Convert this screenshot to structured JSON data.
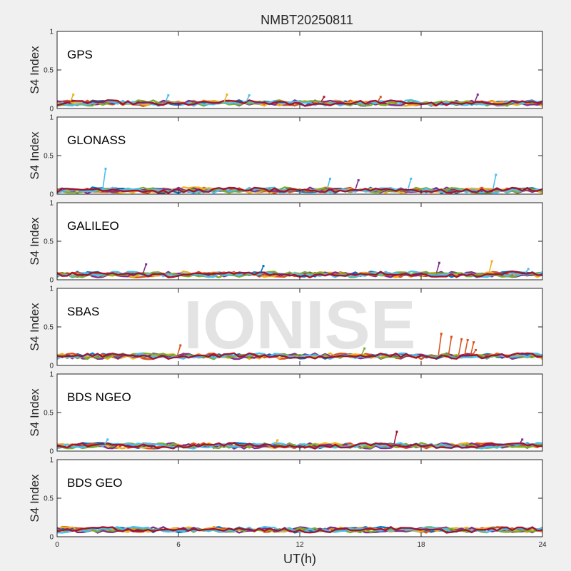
{
  "figure": {
    "title": "NMBT20250811",
    "xlabel": "UT(h)",
    "watermark": "IONISE"
  },
  "palette": [
    "#0072BD",
    "#D95319",
    "#EDB120",
    "#7E2F8E",
    "#77AC30",
    "#4DBEEE",
    "#A2142F"
  ],
  "chart_data": [
    {
      "type": "scatter",
      "label": "GPS",
      "ylabel": "S4 Index",
      "xlim": [
        0,
        24
      ],
      "ylim": [
        0,
        1
      ],
      "xticks": [
        0,
        6,
        12,
        18,
        24
      ],
      "yticks": [
        0,
        0.5,
        1
      ],
      "baseline": 0.07,
      "spikes": [
        {
          "x": 0.8,
          "y": 0.18,
          "series": 2
        },
        {
          "x": 5.5,
          "y": 0.17,
          "series": 5
        },
        {
          "x": 8.4,
          "y": 0.18,
          "series": 2
        },
        {
          "x": 9.5,
          "y": 0.17,
          "series": 5
        },
        {
          "x": 13.2,
          "y": 0.15,
          "series": 6
        },
        {
          "x": 16.0,
          "y": 0.15,
          "series": 1
        },
        {
          "x": 20.8,
          "y": 0.18,
          "series": 3
        }
      ]
    },
    {
      "type": "scatter",
      "label": "GLONASS",
      "ylabel": "S4 Index",
      "xlim": [
        0,
        24
      ],
      "ylim": [
        0,
        1
      ],
      "xticks": [
        0,
        6,
        12,
        18,
        24
      ],
      "yticks": [
        0,
        0.5,
        1
      ],
      "baseline": 0.05,
      "spikes": [
        {
          "x": 2.4,
          "y": 0.33,
          "series": 5
        },
        {
          "x": 13.5,
          "y": 0.2,
          "series": 5
        },
        {
          "x": 14.9,
          "y": 0.18,
          "series": 3
        },
        {
          "x": 17.5,
          "y": 0.2,
          "series": 5
        },
        {
          "x": 21.7,
          "y": 0.25,
          "series": 5
        }
      ]
    },
    {
      "type": "scatter",
      "label": "GALILEO",
      "ylabel": "S4 Index",
      "xlim": [
        0,
        24
      ],
      "ylim": [
        0,
        1
      ],
      "xticks": [
        0,
        6,
        12,
        18,
        24
      ],
      "yticks": [
        0,
        0.5,
        1
      ],
      "baseline": 0.07,
      "spikes": [
        {
          "x": 4.4,
          "y": 0.2,
          "series": 3
        },
        {
          "x": 10.2,
          "y": 0.18,
          "series": 0
        },
        {
          "x": 18.9,
          "y": 0.22,
          "series": 3
        },
        {
          "x": 21.5,
          "y": 0.24,
          "series": 2
        },
        {
          "x": 23.3,
          "y": 0.14,
          "series": 5
        }
      ]
    },
    {
      "type": "scatter",
      "label": "SBAS",
      "ylabel": "S4 Index",
      "xlim": [
        0,
        24
      ],
      "ylim": [
        0,
        1
      ],
      "xticks": [
        0,
        6,
        12,
        18,
        24
      ],
      "yticks": [
        0,
        0.5,
        1
      ],
      "baseline": 0.12,
      "spikes": [
        {
          "x": 6.1,
          "y": 0.26,
          "series": 1
        },
        {
          "x": 15.2,
          "y": 0.22,
          "series": 4
        },
        {
          "x": 19.0,
          "y": 0.41,
          "series": 1
        },
        {
          "x": 19.5,
          "y": 0.37,
          "series": 1
        },
        {
          "x": 20.0,
          "y": 0.34,
          "series": 1
        },
        {
          "x": 20.3,
          "y": 0.33,
          "series": 1
        },
        {
          "x": 20.6,
          "y": 0.3,
          "series": 1
        },
        {
          "x": 20.7,
          "y": 0.2,
          "series": 1
        }
      ]
    },
    {
      "type": "scatter",
      "label": "BDS NGEO",
      "ylabel": "S4 Index",
      "xlim": [
        0,
        24
      ],
      "ylim": [
        0,
        1
      ],
      "xticks": [
        0,
        6,
        12,
        18,
        24
      ],
      "yticks": [
        0,
        0.5,
        1
      ],
      "baseline": 0.07,
      "spikes": [
        {
          "x": 2.5,
          "y": 0.15,
          "series": 5
        },
        {
          "x": 10.9,
          "y": 0.14,
          "series": 2
        },
        {
          "x": 16.8,
          "y": 0.25,
          "series": 6
        },
        {
          "x": 23.0,
          "y": 0.15,
          "series": 3
        }
      ]
    },
    {
      "type": "scatter",
      "label": "BDS GEO",
      "ylabel": "S4 Index",
      "xlim": [
        0,
        24
      ],
      "ylim": [
        0,
        1
      ],
      "xticks": [
        0,
        6,
        12,
        18,
        24
      ],
      "yticks": [
        0,
        0.5,
        1
      ],
      "baseline": 0.09,
      "spikes": []
    }
  ]
}
